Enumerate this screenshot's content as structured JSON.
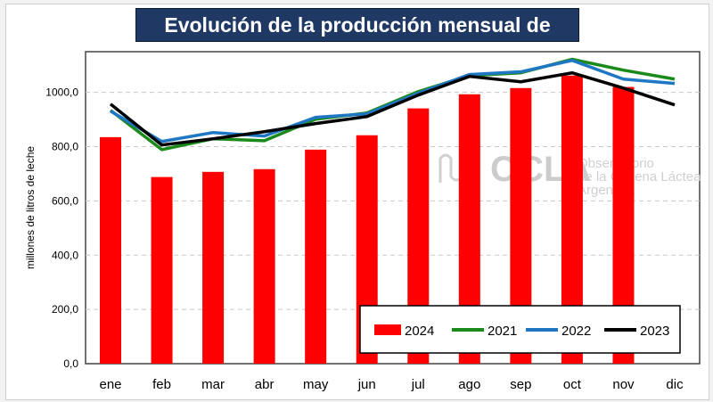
{
  "chart_data": {
    "type": "bar",
    "title": "Evolución de la producción mensual de leche",
    "ylabel": "millones de litros de leche",
    "xlabel": "",
    "categories": [
      "ene",
      "feb",
      "mar",
      "abr",
      "may",
      "jun",
      "jul",
      "ago",
      "sep",
      "oct",
      "nov",
      "dic"
    ],
    "ylim": [
      0,
      1150
    ],
    "yticks": [
      0,
      200,
      400,
      600,
      800,
      1000
    ],
    "ytick_labels": [
      "0,0",
      "200,0",
      "400,0",
      "600,0",
      "800,0",
      "1000,0"
    ],
    "grid": true,
    "legend_placement": "bottom-right",
    "series": [
      {
        "name": "2024",
        "type": "bar",
        "color": "#ff0000",
        "values": [
          835,
          688,
          707,
          717,
          789,
          842,
          941,
          993,
          1016,
          1062,
          1020,
          null
        ]
      },
      {
        "name": "2021",
        "type": "line",
        "color": "#1a8a1a",
        "values": [
          934,
          789,
          829,
          822,
          901,
          924,
          1003,
          1062,
          1072,
          1122,
          1082,
          1049
        ]
      },
      {
        "name": "2022",
        "type": "line",
        "color": "#1f77c4",
        "values": [
          931,
          819,
          852,
          839,
          908,
          921,
          997,
          1066,
          1076,
          1118,
          1049,
          1033
        ]
      },
      {
        "name": "2023",
        "type": "line",
        "color": "#000000",
        "values": [
          957,
          806,
          829,
          855,
          885,
          911,
          990,
          1059,
          1039,
          1072,
          1016,
          954
        ]
      }
    ]
  },
  "watermark": {
    "logo": "OCLA",
    "lines": [
      "Observatorio",
      "de la Cadena Láctea",
      "Argentina"
    ]
  }
}
